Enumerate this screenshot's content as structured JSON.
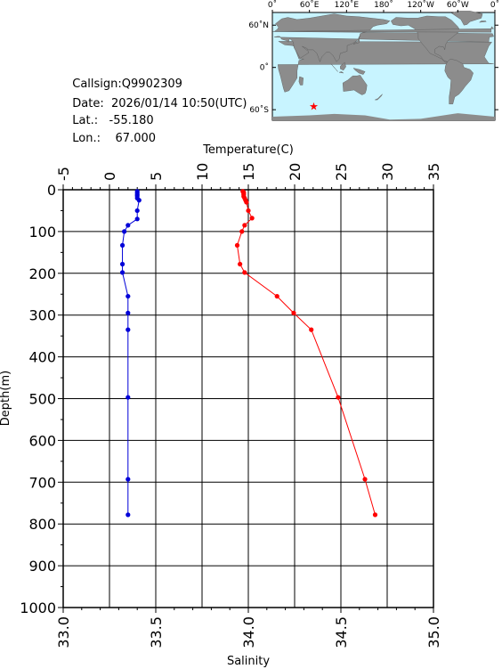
{
  "info": {
    "callsign_label": "Callsign:",
    "callsign": "Q9902309",
    "date_label": "Date:",
    "date": "2026/01/14 10:50(UTC)",
    "lat_label": "Lat.:",
    "lat": "-55.180",
    "lon_label": "Lon.:",
    "lon": "67.000"
  },
  "map": {
    "lon_labels": [
      "0˚",
      "60˚E",
      "120˚E",
      "180˚",
      "120˚W",
      "60˚W",
      "0˚"
    ],
    "lat_labels": [
      "60˚N",
      "0˚",
      "60˚S"
    ],
    "marker": "star",
    "ocean_color": "#c8f4ff",
    "land_color": "#8c8c8c",
    "marker_color": "#ff0000"
  },
  "chart_data": {
    "type": "line",
    "ylabel": "Depth(m)",
    "ylim": [
      0,
      1000
    ],
    "yticks": [
      0,
      100,
      200,
      300,
      400,
      500,
      600,
      700,
      800,
      900,
      1000
    ],
    "inverted_y": true,
    "grid": true,
    "top_axis": {
      "label": "Temperature(C)",
      "lim": [
        -5,
        35
      ],
      "ticks": [
        -5,
        0,
        5,
        10,
        15,
        20,
        25,
        30,
        35
      ]
    },
    "bottom_axis": {
      "label": "Salinity",
      "lim": [
        33.0,
        35.0
      ],
      "ticks": [
        "33.0",
        "33.5",
        "34.0",
        "34.5",
        "35.0"
      ]
    },
    "series": [
      {
        "axis": "temperature",
        "color": "#ff0000",
        "x": [
          14.4,
          14.5,
          14.5,
          14.5,
          14.5,
          14.6,
          14.7,
          14.8,
          15.0,
          15.4,
          14.6,
          14.3,
          13.8,
          14.1,
          14.6,
          18.1,
          19.9,
          21.8,
          24.7,
          27.6,
          28.7
        ],
        "y": [
          4,
          6,
          9,
          12,
          16,
          20,
          25,
          30,
          50,
          68,
          85,
          100,
          133,
          178,
          198,
          255,
          295,
          335,
          497,
          693,
          778
        ]
      },
      {
        "axis": "salinity",
        "color": "#0000d8",
        "x": [
          33.4,
          33.4,
          33.4,
          33.4,
          33.4,
          33.41,
          33.4,
          33.4,
          33.35,
          33.33,
          33.32,
          33.32,
          33.32,
          33.35,
          33.35,
          33.35,
          33.35,
          33.35,
          33.35
        ],
        "y": [
          4,
          8,
          12,
          15,
          20,
          25,
          50,
          70,
          85,
          100,
          133,
          178,
          198,
          255,
          295,
          335,
          497,
          693,
          778
        ]
      }
    ]
  }
}
